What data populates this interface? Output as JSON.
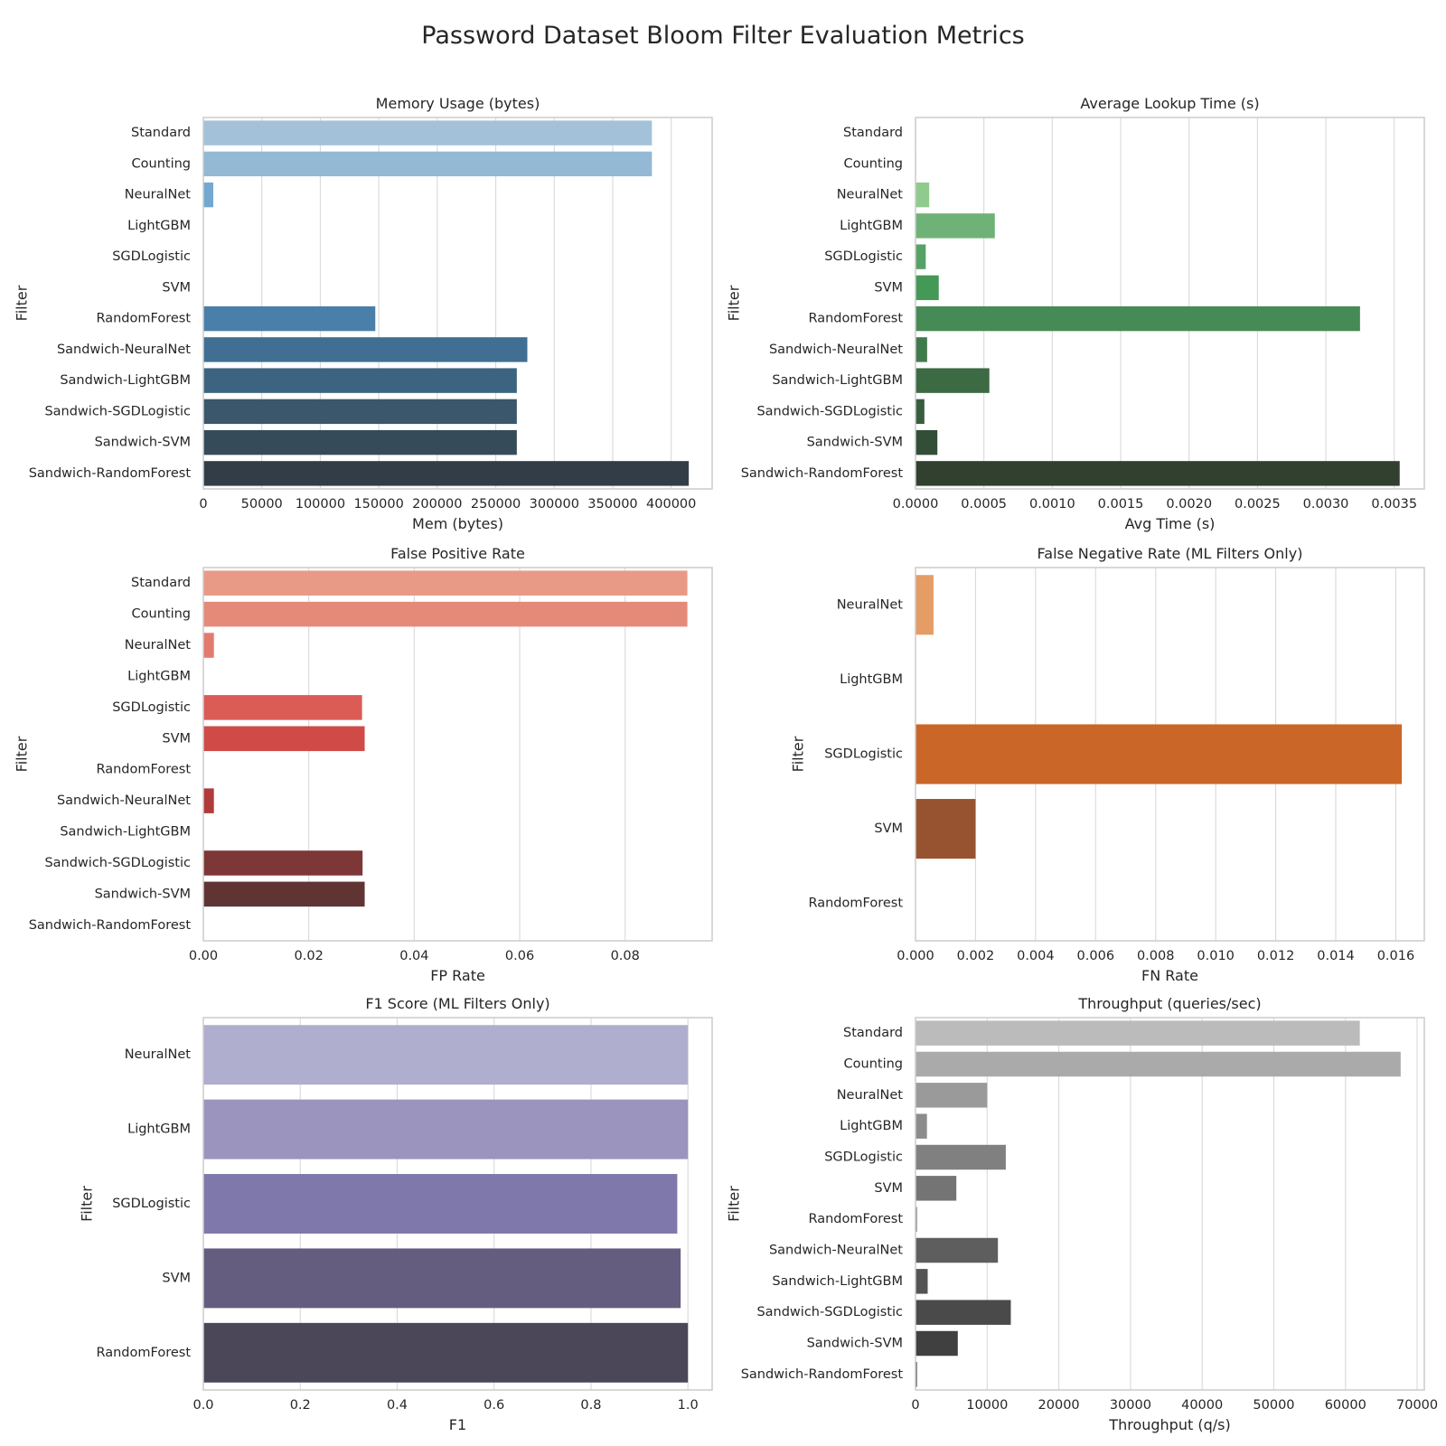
{
  "suptitle": "Password Dataset Bloom Filter Evaluation Metrics",
  "chart_data": [
    {
      "type": "bar",
      "orientation": "horizontal",
      "title": "Memory Usage (bytes)",
      "xlabel": "Mem (bytes)",
      "ylabel": "Filter",
      "categories": [
        "Standard",
        "Counting",
        "NeuralNet",
        "LightGBM",
        "SGDLogistic",
        "SVM",
        "RandomForest",
        "Sandwich-NeuralNet",
        "Sandwich-LightGBM",
        "Sandwich-SGDLogistic",
        "Sandwich-SVM",
        "Sandwich-RandomForest"
      ],
      "values": [
        383500,
        383500,
        8500,
        0,
        0,
        0,
        147000,
        277000,
        268000,
        268000,
        268000,
        415000
      ],
      "xlim": [
        0,
        435000
      ],
      "xticks": [
        0,
        50000,
        100000,
        150000,
        200000,
        250000,
        300000,
        350000,
        400000
      ],
      "xtick_labels": [
        "0",
        "50000",
        "100000",
        "150000",
        "200000",
        "250000",
        "300000",
        "350000",
        "400000"
      ],
      "colors": [
        "#a3c2d9",
        "#93b9d5",
        "#75a8d0",
        "#6aa2cf",
        "#5e9bcc",
        "#5595c7",
        "#4a7fa9",
        "#406f93",
        "#3c6480",
        "#3a576c",
        "#364b5a",
        "#333d47"
      ],
      "grid": "x"
    },
    {
      "type": "bar",
      "orientation": "horizontal",
      "title": "Average Lookup Time (s)",
      "xlabel": "Avg Time (s)",
      "ylabel": "Filter",
      "categories": [
        "Standard",
        "Counting",
        "NeuralNet",
        "LightGBM",
        "SGDLogistic",
        "SVM",
        "RandomForest",
        "Sandwich-NeuralNet",
        "Sandwich-LightGBM",
        "Sandwich-SGDLogistic",
        "Sandwich-SVM",
        "Sandwich-RandomForest"
      ],
      "values": [
        5e-06,
        5e-06,
        0.0001,
        0.00058,
        7.5e-05,
        0.00017,
        0.00325,
        8.5e-05,
        0.00054,
        6.5e-05,
        0.00016,
        0.00354
      ],
      "xlim": [
        0,
        0.00372
      ],
      "xticks": [
        0,
        0.0005,
        0.001,
        0.0015,
        0.002,
        0.0025,
        0.003,
        0.0035
      ],
      "xtick_labels": [
        "0.0000",
        "0.0005",
        "0.0010",
        "0.0015",
        "0.0020",
        "0.0025",
        "0.0030",
        "0.0035"
      ],
      "colors": [
        "#cfe8cc",
        "#b6dcb3",
        "#8fcb8c",
        "#6fb277",
        "#56a266",
        "#459956",
        "#468a55",
        "#407a4c",
        "#3b6a43",
        "#385d3e",
        "#334e37",
        "#31402f"
      ],
      "grid": "x"
    },
    {
      "type": "bar",
      "orientation": "horizontal",
      "title": "False Positive Rate",
      "xlabel": "FP Rate",
      "ylabel": "Filter",
      "categories": [
        "Standard",
        "Counting",
        "NeuralNet",
        "LightGBM",
        "SGDLogistic",
        "SVM",
        "RandomForest",
        "Sandwich-NeuralNet",
        "Sandwich-LightGBM",
        "Sandwich-SGDLogistic",
        "Sandwich-SVM",
        "Sandwich-RandomForest"
      ],
      "values": [
        0.0918,
        0.0918,
        0.002,
        0,
        0.0301,
        0.0306,
        0,
        0.002,
        0,
        0.0302,
        0.0306,
        0
      ],
      "xlim": [
        0,
        0.0965
      ],
      "xticks": [
        0,
        0.02,
        0.04,
        0.06,
        0.08
      ],
      "xtick_labels": [
        "0.00",
        "0.02",
        "0.04",
        "0.06",
        "0.08"
      ],
      "colors": [
        "#e99a86",
        "#e58a79",
        "#e37a6e",
        "#e06c62",
        "#da5c55",
        "#d04a46",
        "#c23f3c",
        "#b03b3a",
        "#9a3736",
        "#7d3736",
        "#613434",
        "#4b2e2e"
      ],
      "grid": "x"
    },
    {
      "type": "bar",
      "orientation": "horizontal",
      "title": "False Negative Rate (ML Filters Only)",
      "xlabel": "FN Rate",
      "ylabel": "Filter",
      "categories": [
        "NeuralNet",
        "LightGBM",
        "SGDLogistic",
        "SVM",
        "RandomForest"
      ],
      "values": [
        0.0006,
        0,
        0.0162,
        0.002,
        0
      ],
      "xlim": [
        0,
        0.01695
      ],
      "xticks": [
        0,
        0.002,
        0.004,
        0.006,
        0.008,
        0.01,
        0.012,
        0.014,
        0.016
      ],
      "xtick_labels": [
        "0.000",
        "0.002",
        "0.004",
        "0.006",
        "0.008",
        "0.010",
        "0.012",
        "0.014",
        "0.016"
      ],
      "colors": [
        "#e59c65",
        "#dc7c3c",
        "#ca6628",
        "#97532f",
        "#6b3d28"
      ],
      "grid": "x"
    },
    {
      "type": "bar",
      "orientation": "horizontal",
      "title": "F1 Score (ML Filters Only)",
      "xlabel": "F1",
      "ylabel": "Filter",
      "categories": [
        "NeuralNet",
        "LightGBM",
        "SGDLogistic",
        "SVM",
        "RandomForest"
      ],
      "values": [
        1.0,
        1.0,
        0.978,
        0.985,
        1.0
      ],
      "xlim": [
        0,
        1.05
      ],
      "xticks": [
        0,
        0.2,
        0.4,
        0.6,
        0.8,
        1.0
      ],
      "xtick_labels": [
        "0.0",
        "0.2",
        "0.4",
        "0.6",
        "0.8",
        "1.0"
      ],
      "colors": [
        "#b0aecf",
        "#9a94be",
        "#7f78ab",
        "#645d80",
        "#4b4759"
      ],
      "grid": "x"
    },
    {
      "type": "bar",
      "orientation": "horizontal",
      "title": "Throughput (queries/sec)",
      "xlabel": "Throughput (q/s)",
      "ylabel": "Filter",
      "categories": [
        "Standard",
        "Counting",
        "NeuralNet",
        "LightGBM",
        "SGDLogistic",
        "SVM",
        "RandomForest",
        "Sandwich-NeuralNet",
        "Sandwich-LightGBM",
        "Sandwich-SGDLogistic",
        "Sandwich-SVM",
        "Sandwich-RandomForest"
      ],
      "values": [
        62000,
        67700,
        10000,
        1600,
        12600,
        5700,
        200,
        11500,
        1700,
        13300,
        5900,
        200
      ],
      "xlim": [
        0,
        71000
      ],
      "xticks": [
        0,
        10000,
        20000,
        30000,
        40000,
        50000,
        60000,
        70000
      ],
      "xtick_labels": [
        "0",
        "10000",
        "20000",
        "30000",
        "40000",
        "50000",
        "60000",
        "70000"
      ],
      "colors": [
        "#bbbbbb",
        "#aaaaaa",
        "#9a9a9a",
        "#8c8c8c",
        "#808080",
        "#747474",
        "#6a6a6a",
        "#5e5e5e",
        "#545454",
        "#4a4a4a",
        "#404040",
        "#383838"
      ],
      "grid": "x"
    }
  ]
}
